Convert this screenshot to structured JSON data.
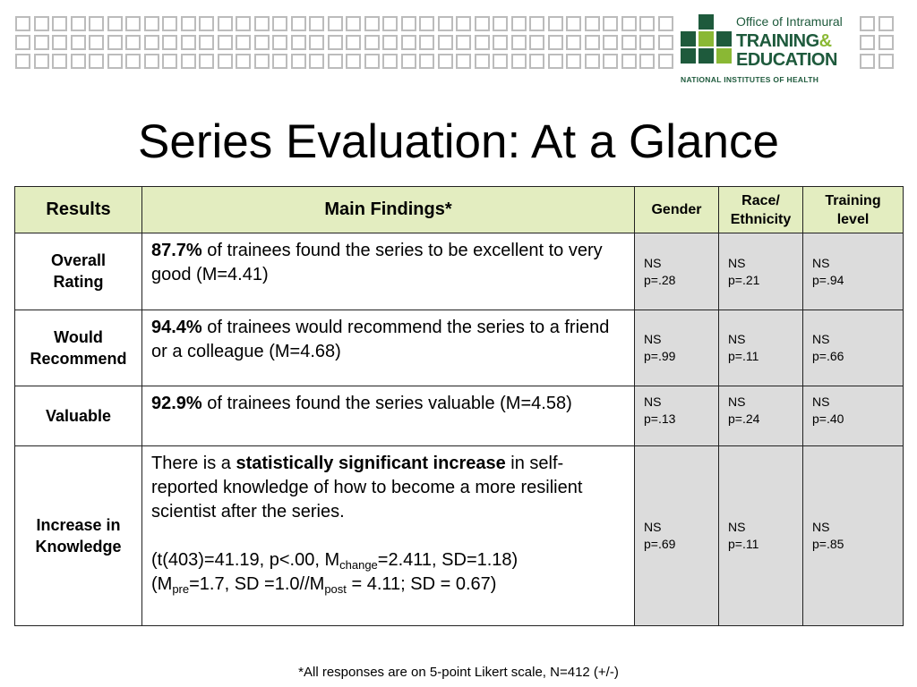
{
  "header": {
    "logo": {
      "line1": "Office of Intramural",
      "line2a": "TRAINING",
      "line2b": "&",
      "line3": "EDUCATION",
      "line4": "NATIONAL INSTITUTES OF HEALTH",
      "colors": {
        "dark_green": "#1e5a3c",
        "light_green": "#8ab834"
      }
    },
    "pattern_colors": {
      "outline": "#bcbcbc"
    }
  },
  "title": "Series Evaluation: At a Glance",
  "table": {
    "headers": {
      "results": "Results",
      "findings": "Main Findings*",
      "gender": "Gender",
      "race_1": "Race/",
      "race_2": "Ethnicity",
      "training_1": "Training",
      "training_2": "level"
    },
    "rows": [
      {
        "result_1": "Overall",
        "result_2": "Rating",
        "pct": "87.7%",
        "finding": " of trainees found the series to be excellent to very good (M=4.41)",
        "gender_ns": "NS",
        "gender_p": "p=.28",
        "race_ns": "NS",
        "race_p": "p=.21",
        "training_ns": "NS",
        "training_p": "p=.94"
      },
      {
        "result_1": "Would",
        "result_2": "Recommend",
        "pct": "94.4%",
        "finding": " of trainees would recommend the series to a friend or a colleague (M=4.68)",
        "gender_ns": "NS",
        "gender_p": "p=.99",
        "race_ns": "NS",
        "race_p": "p=.11",
        "training_ns": "NS",
        "training_p": "p=.66"
      },
      {
        "result_1": "Valuable",
        "pct": "92.9%",
        "finding": " of trainees found the series valuable (M=4.58)",
        "gender_ns": "NS",
        "gender_p": "p=.13",
        "race_ns": "NS",
        "race_p": "p=.24",
        "training_ns": "NS",
        "training_p": "p=.40"
      },
      {
        "result_1": "Increase in",
        "result_2": "Knowledge",
        "finding_pre": "There is a ",
        "finding_bold": "statistically significant increase",
        "finding_post": " in self-reported knowledge of how to become a more resilient scientist after the series.",
        "stats_a": "(t(403)=41.19, p<.00, M",
        "stats_sub1": "change",
        "stats_b": "=2.411, SD=1.18)",
        "stats_c": "(M",
        "stats_sub2": "pre",
        "stats_d": "=1.7, SD =1.0//M",
        "stats_sub3": "post",
        "stats_e": " = 4.11; SD = 0.67)",
        "gender_ns": "NS",
        "gender_p": "p=.69",
        "race_ns": "NS",
        "race_p": "p=.11",
        "training_ns": "NS",
        "training_p": "p=.85"
      }
    ]
  },
  "footnote": "*All responses are on 5-point Likert scale, N=412 (+/-)"
}
